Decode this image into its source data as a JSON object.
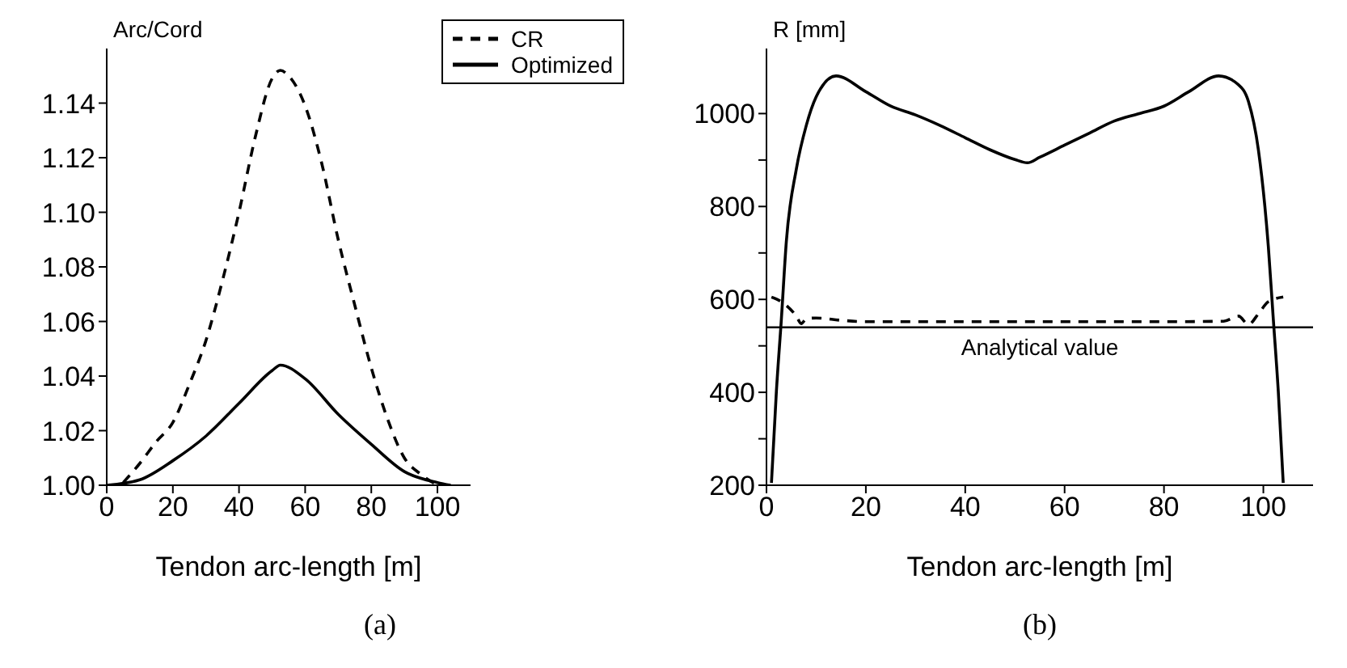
{
  "chart_data": [
    {
      "type": "line",
      "xlabel": "Tendon arc-length [m]",
      "ylabel": "Arc/Cord",
      "annotations": [
        "(a)"
      ],
      "xlim": [
        0,
        110
      ],
      "ylim": [
        1.0,
        1.16
      ],
      "xticks": [
        0,
        20,
        40,
        60,
        80,
        100
      ],
      "yticks": [
        {
          "value": 1.0,
          "label": "1.00"
        },
        1.02,
        1.04,
        1.06,
        1.08,
        {
          "value": 1.1,
          "label": "1.10"
        },
        1.12,
        1.14
      ],
      "legend": "top right",
      "marker": "none",
      "series": [
        {
          "name": "CR",
          "color": "#000000",
          "line_style": "dashed",
          "x": [
            5,
            10,
            15,
            20,
            25,
            30,
            35,
            40,
            45,
            50,
            52.5,
            55,
            60,
            65,
            70,
            75,
            80,
            85,
            90,
            95,
            100
          ],
          "values": [
            1.001,
            1.008,
            1.016,
            1.023,
            1.037,
            1.053,
            1.075,
            1.1,
            1.128,
            1.149,
            1.152,
            1.15,
            1.139,
            1.118,
            1.09,
            1.066,
            1.043,
            1.024,
            1.01,
            1.004,
            1.0
          ]
        },
        {
          "name": "Optimized",
          "color": "#000000",
          "line_style": "solid",
          "x": [
            0,
            10,
            20,
            30,
            40,
            50,
            52.5,
            60,
            70,
            80,
            90,
            100,
            104
          ],
          "values": [
            1.0,
            1.002,
            1.009,
            1.018,
            1.03,
            1.042,
            1.044,
            1.039,
            1.026,
            1.015,
            1.005,
            1.001,
            1.0
          ]
        }
      ]
    },
    {
      "type": "line",
      "xlabel": "Tendon arc-length [m]",
      "ylabel": "R [mm]",
      "annotations": [
        "(b)"
      ],
      "xlim": [
        0,
        110
      ],
      "ylim": [
        200,
        1140
      ],
      "xticks": [
        0,
        20,
        40,
        60,
        80,
        100
      ],
      "yticks": [
        200,
        {
          "value": 300,
          "label": null
        },
        400,
        {
          "value": 500,
          "label": null
        },
        600,
        {
          "value": 700,
          "label": null
        },
        800,
        {
          "value": 900,
          "label": null
        },
        1000
      ],
      "marker": "none",
      "ref_lines": [
        {
          "axis": "y",
          "value": 540,
          "label": "Analytical value",
          "color": "#000000",
          "line_style": "solid"
        }
      ],
      "series": [
        {
          "color": "#000000",
          "line_style": "solid",
          "x": [
            1,
            2,
            3,
            4,
            6,
            8,
            10,
            14,
            20,
            25,
            30,
            35,
            40,
            45,
            50,
            52.5,
            55,
            60,
            65,
            70,
            75,
            80,
            85,
            91,
            95,
            97,
            99,
            101,
            102,
            103,
            104
          ],
          "values": [
            205,
            403,
            558,
            725,
            880,
            974,
            1036,
            1081,
            1047,
            1016,
            997,
            974,
            948,
            922,
            901,
            894,
            906,
            932,
            958,
            984,
            1000,
            1016,
            1047,
            1081,
            1062,
            1026,
            922,
            714,
            558,
            403,
            205
          ]
        },
        {
          "color": "#000000",
          "line_style": "dashed",
          "x": [
            1,
            3,
            6,
            7,
            8,
            10,
            15,
            20,
            40,
            60,
            80,
            92,
            95,
            97,
            99,
            101,
            104
          ],
          "values": [
            605,
            595,
            564,
            548,
            558,
            560,
            555,
            552,
            552,
            552,
            552,
            553,
            564,
            546,
            569,
            595,
            605
          ]
        }
      ]
    }
  ]
}
